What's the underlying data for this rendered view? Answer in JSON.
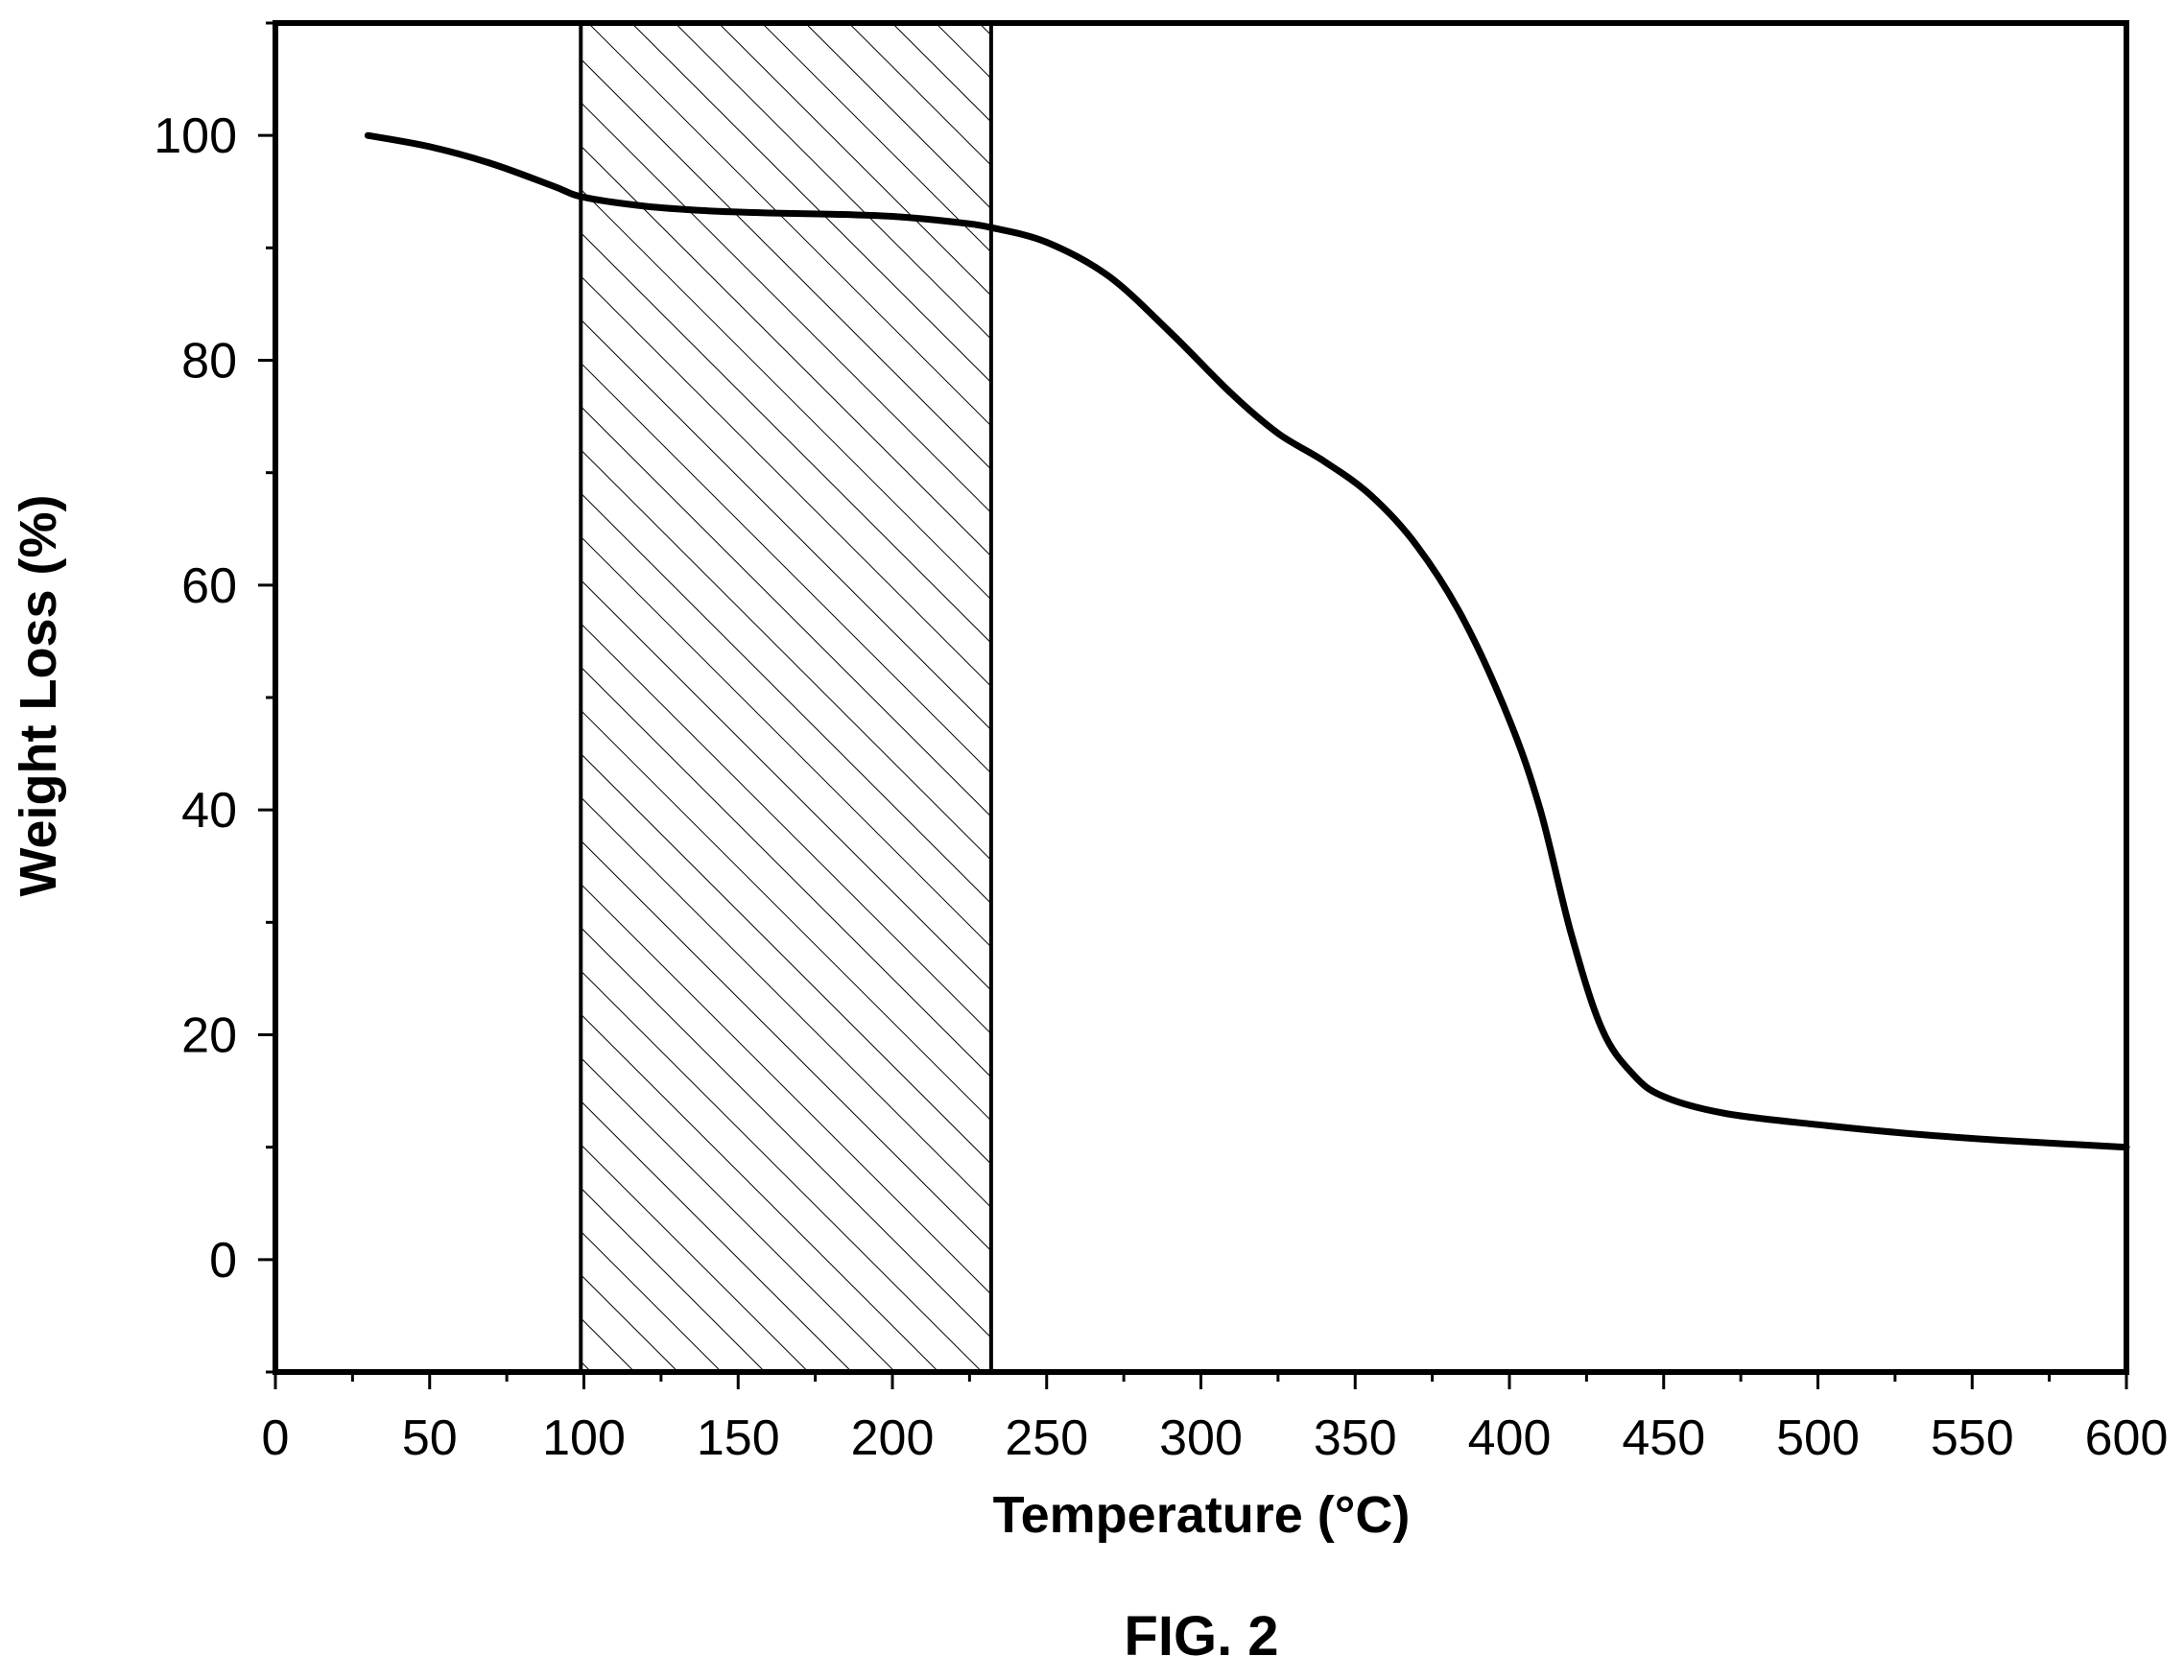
{
  "figure_label": "FIG. 2",
  "chart_data": {
    "type": "line",
    "xlabel": "Temperature (°C)",
    "ylabel": "Weight Loss (%)",
    "xlim": [
      0,
      600
    ],
    "ylim": [
      -10,
      110
    ],
    "xticks": [
      0,
      50,
      100,
      150,
      200,
      250,
      300,
      350,
      400,
      450,
      500,
      550,
      600
    ],
    "yticks": [
      0,
      20,
      40,
      60,
      80,
      100
    ],
    "grid": false,
    "shaded_region": {
      "x_start": 99,
      "x_end": 232,
      "pattern": "diagonal-hatch"
    },
    "series": [
      {
        "x": [
          30,
          50,
          70,
          90,
          100,
          120,
          140,
          160,
          180,
          200,
          220,
          232,
          250,
          270,
          290,
          310,
          325,
          340,
          355,
          370,
          385,
          400,
          410,
          420,
          430,
          440,
          450,
          470,
          500,
          530,
          560,
          600
        ],
        "y": [
          100,
          99,
          97.5,
          95.5,
          94.5,
          93.7,
          93.3,
          93.1,
          93.0,
          92.8,
          92.3,
          91.8,
          90.5,
          87.5,
          82.5,
          77,
          73.5,
          71,
          68,
          63.5,
          57,
          48,
          40,
          29,
          20.5,
          16.5,
          14.5,
          13,
          12,
          11.2,
          10.6,
          10
        ]
      }
    ]
  }
}
